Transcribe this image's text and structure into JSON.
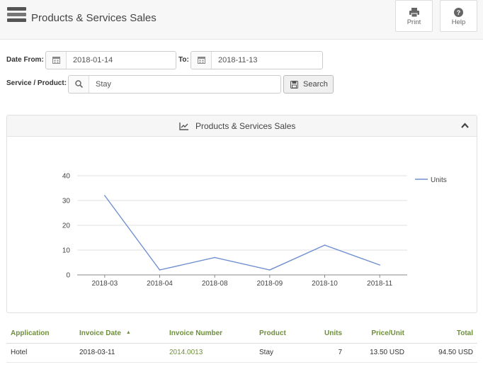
{
  "header": {
    "title": "Products & Services Sales",
    "print_label": "Print",
    "help_label": "Help"
  },
  "filters": {
    "date_from_label": "Date From:",
    "date_from_value": "2018-01-14",
    "date_to_label": "To:",
    "date_to_value": "2018-11-13",
    "service_label": "Service / Product:",
    "service_value": "Stay",
    "search_label": "Search"
  },
  "panel": {
    "title": "Products & Services Sales"
  },
  "chart_data": {
    "type": "line",
    "categories": [
      "2018-03",
      "2018-04",
      "2018-08",
      "2018-09",
      "2018-10",
      "2018-11"
    ],
    "series": [
      {
        "name": "Units",
        "values": [
          32,
          2,
          7,
          2,
          12,
          4
        ],
        "color": "#6f8fd0"
      }
    ],
    "yticks": [
      0,
      10,
      20,
      30,
      40
    ],
    "ylim": [
      0,
      40
    ],
    "grid": true,
    "legend": "right"
  },
  "table": {
    "columns": [
      "Application",
      "Invoice Date",
      "Invoice Number",
      "Product",
      "Units",
      "Price/Unit",
      "Total"
    ],
    "rows": [
      [
        "Hotel",
        "2018-03-11",
        "2014.0013",
        "Stay",
        "7",
        "13.50 USD",
        "94.50 USD"
      ]
    ]
  },
  "colors": {
    "accent": "#6d8f3a",
    "line": "#6f8fd0"
  }
}
